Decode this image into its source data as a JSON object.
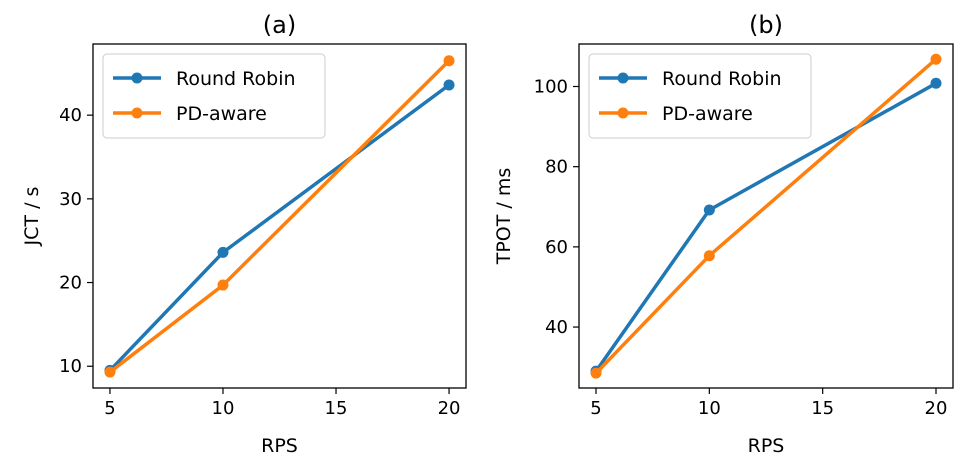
{
  "chart_data": [
    {
      "type": "line",
      "title": "(a)",
      "xlabel": "RPS",
      "ylabel": "JCT / s",
      "x": [
        5,
        10,
        20
      ],
      "xlim": [
        4.25,
        20.75
      ],
      "ylim": [
        7.4,
        48.5
      ],
      "xticks": [
        5,
        10,
        15,
        20
      ],
      "yticks": [
        10,
        20,
        30,
        40
      ],
      "legend_position": "upper-left",
      "series": [
        {
          "name": "Round Robin",
          "color": "#1f77b4",
          "values": [
            9.5,
            23.6,
            43.6
          ]
        },
        {
          "name": "PD-aware",
          "color": "#ff7f0e",
          "values": [
            9.3,
            19.7,
            46.5
          ]
        }
      ]
    },
    {
      "type": "line",
      "title": "(b)",
      "xlabel": "RPS",
      "ylabel": "TPOT / ms",
      "x": [
        5,
        10,
        20
      ],
      "xlim": [
        4.25,
        20.75
      ],
      "ylim": [
        24.8,
        110.6
      ],
      "xticks": [
        5,
        10,
        15,
        20
      ],
      "yticks": [
        40,
        60,
        80,
        100
      ],
      "legend_position": "upper-left",
      "series": [
        {
          "name": "Round Robin",
          "color": "#1f77b4",
          "values": [
            29.0,
            69.2,
            100.8
          ]
        },
        {
          "name": "PD-aware",
          "color": "#ff7f0e",
          "values": [
            28.5,
            57.8,
            106.8
          ]
        }
      ]
    }
  ]
}
